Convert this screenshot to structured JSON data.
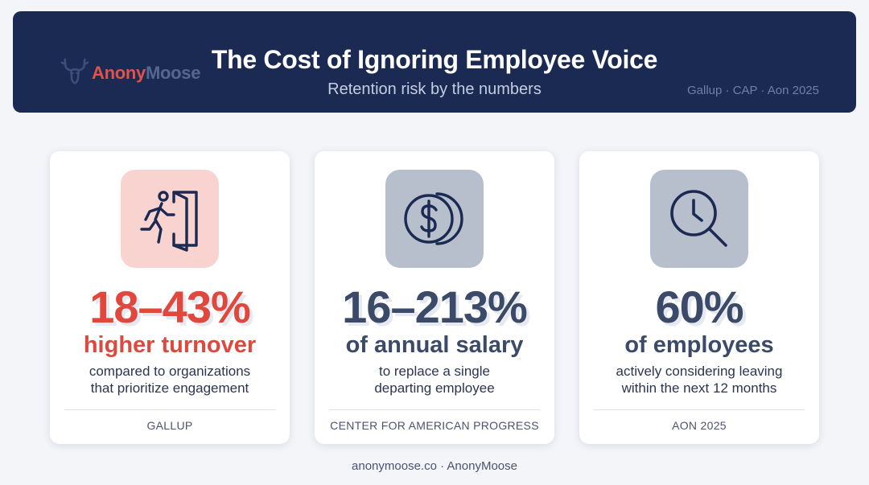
{
  "header": {
    "logo_text_part1": "Anony",
    "logo_text_part2": "Moose",
    "title": "The Cost of Ignoring Employee Voice",
    "subtitle": "Retention risk by the numbers",
    "sources": "Gallup · CAP · Aon 2025"
  },
  "cards": [
    {
      "icon": "exit-door-icon",
      "stat": "18–43%",
      "headline": "higher turnover",
      "desc_line1": "compared to organizations",
      "desc_line2": "that prioritize engagement",
      "source": "GALLUP",
      "accent_color": "#e0473d",
      "icon_bg": "#f9d3cf"
    },
    {
      "icon": "coins-dollar-icon",
      "stat": "16–213%",
      "headline": "of annual salary",
      "desc_line1": "to replace a single",
      "desc_line2": "departing employee",
      "source": "CENTER FOR AMERICAN PROGRESS",
      "accent_color": "#3b4a68",
      "icon_bg": "#b8bfcc"
    },
    {
      "icon": "clock-search-icon",
      "stat": "60%",
      "headline": "of employees",
      "desc_line1": "actively considering leaving",
      "desc_line2": "within the next 12 months",
      "source": "AON 2025",
      "accent_color": "#3b4a68",
      "icon_bg": "#b8bfcc"
    }
  ],
  "footer": "anonymoose.co · AnonyMoose"
}
